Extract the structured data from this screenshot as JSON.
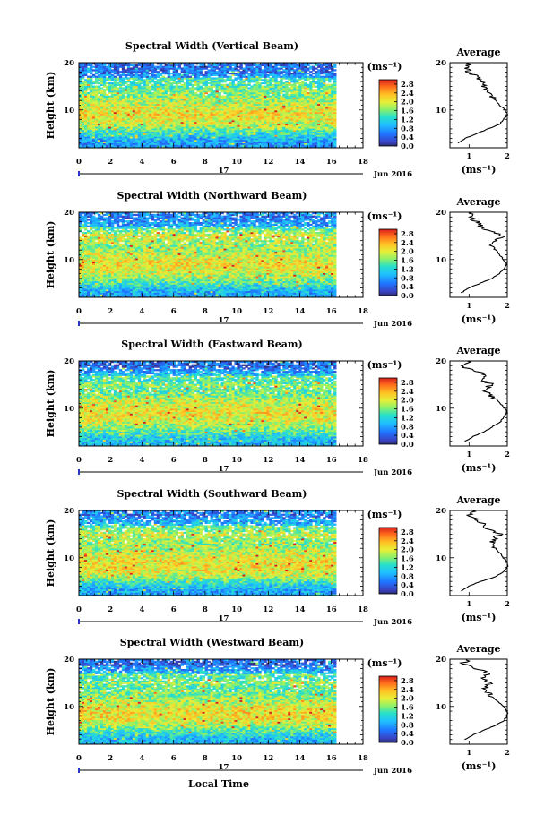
{
  "figure": {
    "x_axis_label": "Local Time",
    "date_day": "17",
    "date_month_year": "Jun 2016",
    "colorbar_unit": "(ms⁻¹)",
    "colorbar_ticks": [
      "0.0",
      "0.4",
      "0.8",
      "1.2",
      "1.6",
      "2.0",
      "2.4",
      "2.8"
    ],
    "profile_title": "Average",
    "profile_xlabel": "(ms⁻¹)"
  },
  "chart_data": [
    {
      "type": "heatmap",
      "title": "Spectral Width (Vertical Beam)",
      "xlabel": "Local Time",
      "ylabel": "Height (km)",
      "xlim": [
        0,
        18
      ],
      "ylim": [
        2,
        20
      ],
      "xticks": [
        0,
        2,
        4,
        6,
        8,
        10,
        12,
        14,
        16,
        18
      ],
      "yticks": [
        10,
        20
      ],
      "data_extent_hours": [
        0,
        16.3
      ],
      "value_range": [
        0.0,
        3.0
      ],
      "profile": {
        "title": "Average",
        "xlim": [
          0.5,
          2
        ],
        "xticks": [
          1,
          2
        ],
        "height": [
          3,
          4,
          5,
          6,
          7,
          8,
          9,
          10,
          11,
          12,
          13,
          14,
          15,
          16,
          17,
          18,
          19,
          20
        ],
        "value": [
          0.7,
          0.9,
          1.2,
          1.5,
          1.8,
          1.9,
          2.0,
          1.95,
          1.8,
          1.7,
          1.6,
          1.55,
          1.4,
          1.3,
          1.2,
          1.0,
          0.95,
          1.0
        ]
      }
    },
    {
      "type": "heatmap",
      "title": "Spectral Width (Northward Beam)",
      "xlabel": "Local Time",
      "ylabel": "Height (km)",
      "xlim": [
        0,
        18
      ],
      "ylim": [
        2,
        20
      ],
      "xticks": [
        0,
        2,
        4,
        6,
        8,
        10,
        12,
        14,
        16,
        18
      ],
      "yticks": [
        10,
        20
      ],
      "data_extent_hours": [
        0,
        16.3
      ],
      "value_range": [
        0.0,
        3.0
      ],
      "profile": {
        "title": "Average",
        "xlim": [
          0.5,
          2
        ],
        "xticks": [
          1,
          2
        ],
        "height": [
          3,
          4,
          5,
          6,
          7,
          8,
          9,
          10,
          11,
          12,
          13,
          14,
          15,
          16,
          17,
          18,
          19,
          20
        ],
        "value": [
          0.8,
          1.0,
          1.3,
          1.6,
          1.8,
          1.9,
          2.0,
          1.9,
          1.8,
          1.7,
          1.6,
          1.7,
          1.9,
          1.5,
          1.3,
          1.2,
          1.0,
          1.1
        ]
      }
    },
    {
      "type": "heatmap",
      "title": "Spectral Width (Eastward Beam)",
      "xlabel": "Local Time",
      "ylabel": "Height (km)",
      "xlim": [
        0,
        18
      ],
      "ylim": [
        2,
        20
      ],
      "xticks": [
        0,
        2,
        4,
        6,
        8,
        10,
        12,
        14,
        16,
        18
      ],
      "yticks": [
        10,
        20
      ],
      "data_extent_hours": [
        0,
        16.3
      ],
      "value_range": [
        0.0,
        3.0
      ],
      "profile": {
        "title": "Average",
        "xlim": [
          0.5,
          2
        ],
        "xticks": [
          1,
          2
        ],
        "height": [
          3,
          4,
          5,
          6,
          7,
          8,
          9,
          10,
          11,
          12,
          13,
          14,
          15,
          16,
          17,
          18,
          19,
          20
        ],
        "value": [
          0.9,
          1.1,
          1.4,
          1.6,
          1.8,
          1.9,
          2.0,
          1.95,
          1.8,
          1.7,
          1.5,
          1.4,
          1.6,
          1.3,
          1.5,
          1.1,
          0.8,
          1.0
        ]
      }
    },
    {
      "type": "heatmap",
      "title": "Spectral Width (Southward Beam)",
      "xlabel": "Local Time",
      "ylabel": "Height (km)",
      "xlim": [
        0,
        18
      ],
      "ylim": [
        2,
        20
      ],
      "xticks": [
        0,
        2,
        4,
        6,
        8,
        10,
        12,
        14,
        16,
        18
      ],
      "yticks": [
        10,
        20
      ],
      "data_extent_hours": [
        0,
        16.3
      ],
      "value_range": [
        0.0,
        3.0
      ],
      "profile": {
        "title": "Average",
        "xlim": [
          0.5,
          2
        ],
        "xticks": [
          1,
          2
        ],
        "height": [
          3,
          4,
          5,
          6,
          7,
          8,
          9,
          10,
          11,
          12,
          13,
          14,
          15,
          16,
          17,
          18,
          19,
          20
        ],
        "value": [
          0.8,
          1.0,
          1.3,
          1.7,
          1.9,
          2.0,
          2.0,
          1.9,
          1.8,
          1.7,
          1.6,
          1.65,
          1.8,
          1.5,
          1.4,
          1.2,
          1.0,
          1.1
        ]
      }
    },
    {
      "type": "heatmap",
      "title": "Spectral Width (Westward Beam)",
      "xlabel": "Local Time",
      "ylabel": "Height (km)",
      "xlim": [
        0,
        18
      ],
      "ylim": [
        2,
        20
      ],
      "xticks": [
        0,
        2,
        4,
        6,
        8,
        10,
        12,
        14,
        16,
        18
      ],
      "yticks": [
        10,
        20
      ],
      "data_extent_hours": [
        0,
        16.3
      ],
      "value_range": [
        0.0,
        3.0
      ],
      "profile": {
        "title": "Average",
        "xlim": [
          0.5,
          2
        ],
        "xticks": [
          1,
          2
        ],
        "height": [
          3,
          4,
          5,
          6,
          7,
          8,
          9,
          10,
          11,
          12,
          13,
          14,
          15,
          16,
          17,
          18,
          19,
          20
        ],
        "value": [
          0.9,
          1.1,
          1.4,
          1.7,
          1.9,
          2.0,
          2.0,
          1.9,
          1.75,
          1.6,
          1.5,
          1.4,
          1.6,
          1.3,
          1.5,
          1.2,
          0.8,
          1.0
        ]
      }
    }
  ]
}
